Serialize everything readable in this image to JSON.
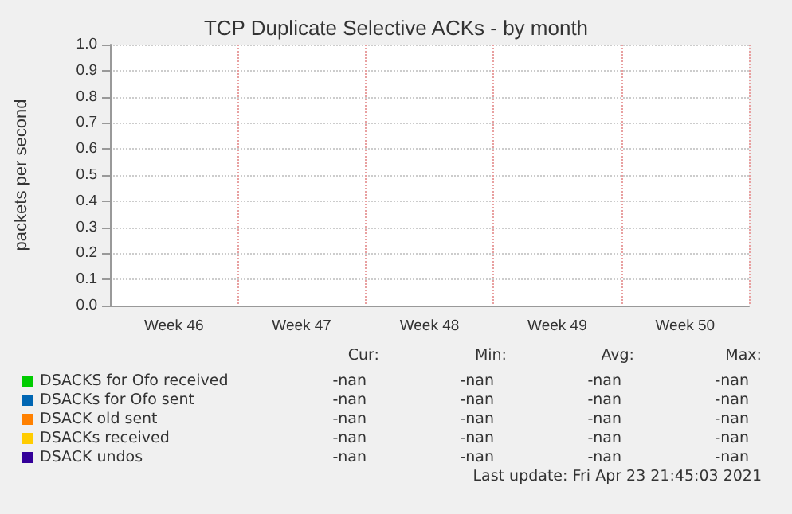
{
  "chart_data": {
    "type": "line",
    "title": "TCP Duplicate Selective ACKs - by month",
    "ylabel": "packets per second",
    "categories": [
      "Week 46",
      "Week 47",
      "Week 48",
      "Week 49",
      "Week 50"
    ],
    "series": [
      {
        "name": "DSACKS for Ofo received",
        "color": "#00cc00",
        "values": [
          null,
          null,
          null,
          null,
          null
        ]
      },
      {
        "name": "DSACKs for Ofo sent",
        "color": "#0066b3",
        "values": [
          null,
          null,
          null,
          null,
          null
        ]
      },
      {
        "name": "DSACK old sent",
        "color": "#ff8000",
        "values": [
          null,
          null,
          null,
          null,
          null
        ]
      },
      {
        "name": "DSACKs received",
        "color": "#ffcc00",
        "values": [
          null,
          null,
          null,
          null,
          null
        ]
      },
      {
        "name": "DSACK undos",
        "color": "#330099",
        "values": [
          null,
          null,
          null,
          null,
          null
        ]
      }
    ],
    "ylim": [
      0,
      1
    ],
    "yticks": [
      {
        "value": 0,
        "label": "0.0"
      },
      0.1,
      0.2,
      0.3,
      0.4,
      0.5,
      0.6,
      0.7,
      0.8,
      0.9,
      {
        "value": 1,
        "label": "1.0"
      }
    ],
    "grid": true,
    "legend": "bottom",
    "annotations": [
      "Cur:",
      "Min:",
      "Avg:",
      "Max:",
      "-nan",
      "-nan",
      "-nan",
      "-nan",
      "-nan",
      "-nan",
      "-nan",
      "-nan",
      "-nan",
      "-nan",
      "-nan",
      "-nan",
      "-nan",
      "-nan",
      "-nan",
      "-nan",
      "-nan",
      "-nan",
      "-nan",
      "-nan",
      "Last update: Fri Apr 23 21:45:03 2021"
    ]
  }
}
